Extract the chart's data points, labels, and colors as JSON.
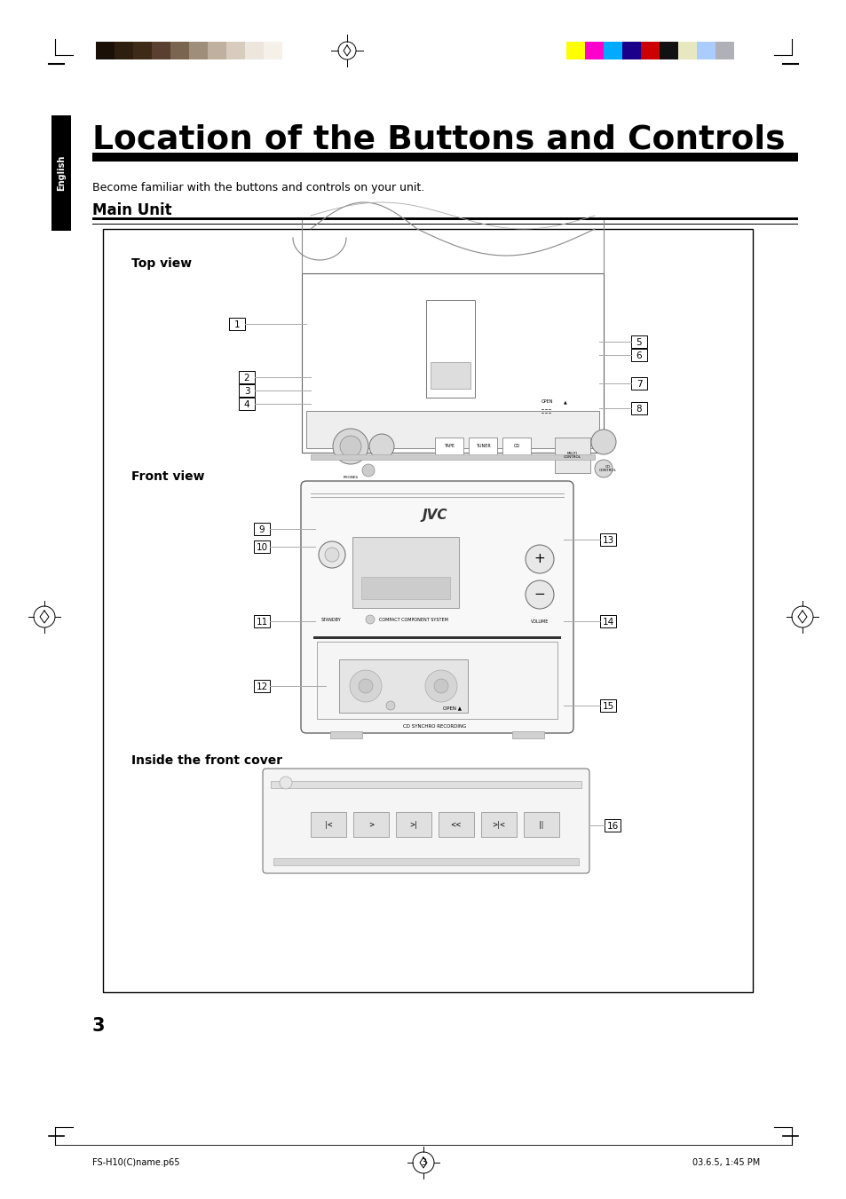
{
  "page_bg": "#ffffff",
  "title": "Location of the Buttons and Controls",
  "subtitle": "Become familiar with the buttons and controls on your unit.",
  "section": "Main Unit",
  "english_label": "English",
  "views": [
    "Top view",
    "Front view",
    "Inside the front cover"
  ],
  "footer_left": "FS-H10(C)name.p65",
  "footer_center": "3",
  "footer_right": "03.6.5, 1:45 PM",
  "page_number": "3",
  "color_bars_left": [
    "#1a1008",
    "#2e1e0f",
    "#3d2b18",
    "#5a4030",
    "#7a6550",
    "#9e8e7a",
    "#c0b0a0",
    "#d8ccbe",
    "#ece6dc",
    "#f5f0e8",
    "#ffffff"
  ],
  "color_bars_right": [
    "#ffff00",
    "#ff00cc",
    "#00aaff",
    "#1a008a",
    "#cc0000",
    "#111111",
    "#e8e8c0",
    "#aaccff",
    "#b0b0b8"
  ]
}
